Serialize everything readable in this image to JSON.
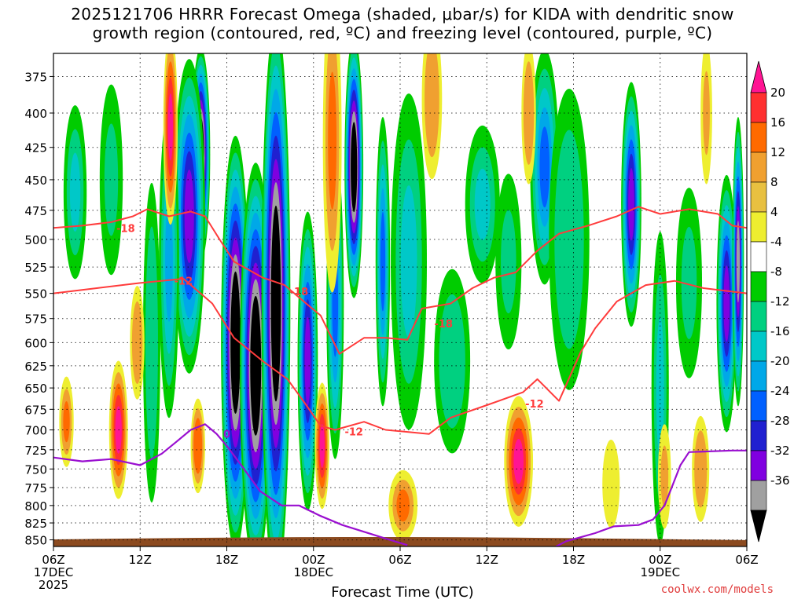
{
  "title_line1": "2025121706 HRRR Forecast Omega (shaded, μbar/s) for KIDA with dendritic snow",
  "title_line2": "growth region (contoured, red, ºC) and freezing level (contoured, purple, ºC)",
  "credit": "coolwx.com/models",
  "colors": {
    "dendritic": "#ff3b3b",
    "freezing": "#9a0fd0",
    "terrain": "#8b4a1f"
  },
  "chart_data": {
    "type": "heatmap",
    "title": "2025121706 HRRR Forecast Omega (shaded, μbar/s) for KIDA with dendritic snow growth region (contoured, red, ºC) and freezing level (contoured, purple, ºC)",
    "xlabel": "Forecast Time (UTC)",
    "ylabel": "",
    "x_range_hours": [
      0,
      48
    ],
    "y_range_mb": [
      360,
      860
    ],
    "y_scale": "log-pressure",
    "y_ticks": [
      375,
      400,
      425,
      450,
      475,
      500,
      525,
      550,
      575,
      600,
      625,
      650,
      675,
      700,
      725,
      750,
      775,
      800,
      825,
      850
    ],
    "x_ticks": [
      {
        "hour": 0,
        "l1": "06Z",
        "l2": "17DEC",
        "l3": "2025"
      },
      {
        "hour": 6,
        "l1": "12Z",
        "l2": "",
        "l3": ""
      },
      {
        "hour": 12,
        "l1": "18Z",
        "l2": "",
        "l3": ""
      },
      {
        "hour": 18,
        "l1": "00Z",
        "l2": "18DEC",
        "l3": ""
      },
      {
        "hour": 24,
        "l1": "06Z",
        "l2": "",
        "l3": ""
      },
      {
        "hour": 30,
        "l1": "12Z",
        "l2": "",
        "l3": ""
      },
      {
        "hour": 36,
        "l1": "18Z",
        "l2": "",
        "l3": ""
      },
      {
        "hour": 42,
        "l1": "00Z",
        "l2": "19DEC",
        "l3": ""
      },
      {
        "hour": 48,
        "l1": "06Z",
        "l2": "",
        "l3": ""
      }
    ],
    "grid": true,
    "colorbar": {
      "labels": [
        "20",
        "16",
        "12",
        "8",
        "4",
        "-4",
        "-8",
        "-12",
        "-16",
        "-20",
        "-24",
        "-28",
        "-32",
        "-36"
      ],
      "bins": [
        {
          "color": "#ff1493"
        },
        {
          "color": "#ff3030"
        },
        {
          "color": "#ff6a00"
        },
        {
          "color": "#f0a030"
        },
        {
          "color": "#e8c040"
        },
        {
          "color": "#eeee30"
        },
        {
          "color": "#ffffff"
        },
        {
          "color": "#00cc00"
        },
        {
          "color": "#00d080"
        },
        {
          "color": "#00c8c8"
        },
        {
          "color": "#00a8e8"
        },
        {
          "color": "#0060ff"
        },
        {
          "color": "#2020d0"
        },
        {
          "color": "#8000e0"
        },
        {
          "color": "#a0a0a0"
        },
        {
          "color": "#000000"
        }
      ]
    },
    "omega_cells": [
      {
        "h": 12.6,
        "p": 600,
        "dh": 2.0,
        "dp": 420,
        "v": -40
      },
      {
        "h": 14.0,
        "p": 625,
        "dh": 2.2,
        "dp": 430,
        "v": -40
      },
      {
        "h": 15.4,
        "p": 560,
        "dh": 2.0,
        "dp": 520,
        "v": -40
      },
      {
        "h": 10.2,
        "p": 430,
        "dh": 1.3,
        "dp": 160,
        "v": -40
      },
      {
        "h": 20.8,
        "p": 440,
        "dh": 1.3,
        "dp": 200,
        "v": -40
      },
      {
        "h": 9.4,
        "p": 480,
        "dh": 2.2,
        "dp": 260,
        "v": -28
      },
      {
        "h": 17.6,
        "p": 620,
        "dh": 1.4,
        "dp": 320,
        "v": -28
      },
      {
        "h": 19.5,
        "p": 560,
        "dh": 1.2,
        "dp": 300,
        "v": -20
      },
      {
        "h": 22.8,
        "p": 520,
        "dh": 1.0,
        "dp": 260,
        "v": -20
      },
      {
        "h": 24.6,
        "p": 520,
        "dh": 2.5,
        "dp": 300,
        "v": -12
      },
      {
        "h": 27.6,
        "p": 620,
        "dh": 2.5,
        "dp": 200,
        "v": -10
      },
      {
        "h": 29.7,
        "p": 470,
        "dh": 2.4,
        "dp": 130,
        "v": -12
      },
      {
        "h": 34.0,
        "p": 440,
        "dh": 2.0,
        "dp": 180,
        "v": -20
      },
      {
        "h": 35.7,
        "p": 500,
        "dh": 2.8,
        "dp": 260,
        "v": -10
      },
      {
        "h": 40.0,
        "p": 470,
        "dh": 1.4,
        "dp": 200,
        "v": -28
      },
      {
        "h": 42.0,
        "p": 650,
        "dh": 1.2,
        "dp": 350,
        "v": -12
      },
      {
        "h": 46.6,
        "p": 560,
        "dh": 1.4,
        "dp": 250,
        "v": -28
      },
      {
        "h": 47.4,
        "p": 520,
        "dh": 0.8,
        "dp": 260,
        "v": -32
      },
      {
        "h": 1.5,
        "p": 460,
        "dh": 1.6,
        "dp": 140,
        "v": -12
      },
      {
        "h": 4.0,
        "p": 450,
        "dh": 1.6,
        "dp": 150,
        "v": -8
      },
      {
        "h": 6.8,
        "p": 600,
        "dh": 1.2,
        "dp": 330,
        "v": -10
      },
      {
        "h": 8.0,
        "p": 520,
        "dh": 1.4,
        "dp": 280,
        "v": -16
      },
      {
        "h": 31.5,
        "p": 520,
        "dh": 1.8,
        "dp": 160,
        "v": -8
      },
      {
        "h": 44.0,
        "p": 540,
        "dh": 1.8,
        "dp": 180,
        "v": -8
      },
      {
        "h": 0.9,
        "p": 690,
        "dh": 1.0,
        "dp": 110,
        "v": 12
      },
      {
        "h": 4.5,
        "p": 700,
        "dh": 1.3,
        "dp": 170,
        "v": 18
      },
      {
        "h": 5.8,
        "p": 600,
        "dh": 1.0,
        "dp": 120,
        "v": 10
      },
      {
        "h": 10.0,
        "p": 720,
        "dh": 1.0,
        "dp": 120,
        "v": 14
      },
      {
        "h": 8.1,
        "p": 410,
        "dh": 1.0,
        "dp": 140,
        "v": 18
      },
      {
        "h": 18.6,
        "p": 720,
        "dh": 1.0,
        "dp": 160,
        "v": 18
      },
      {
        "h": 19.3,
        "p": 420,
        "dh": 1.3,
        "dp": 220,
        "v": 12
      },
      {
        "h": 24.2,
        "p": 800,
        "dh": 2.0,
        "dp": 100,
        "v": 12
      },
      {
        "h": 26.2,
        "p": 390,
        "dh": 1.4,
        "dp": 110,
        "v": 10
      },
      {
        "h": 32.2,
        "p": 740,
        "dh": 2.0,
        "dp": 170,
        "v": 20
      },
      {
        "h": 32.9,
        "p": 400,
        "dh": 1.0,
        "dp": 100,
        "v": 10
      },
      {
        "h": 38.6,
        "p": 770,
        "dh": 1.2,
        "dp": 120,
        "v": 4
      },
      {
        "h": 42.3,
        "p": 760,
        "dh": 0.9,
        "dp": 140,
        "v": 8
      },
      {
        "h": 44.8,
        "p": 750,
        "dh": 1.2,
        "dp": 140,
        "v": 10
      },
      {
        "h": 45.2,
        "p": 400,
        "dh": 0.8,
        "dp": 100,
        "v": 8
      }
    ],
    "dendritic_minus12": [
      {
        "h": 0,
        "p": 550
      },
      {
        "h": 3,
        "p": 545
      },
      {
        "h": 6,
        "p": 540
      },
      {
        "h": 9,
        "p": 536
      },
      {
        "h": 11,
        "p": 560
      },
      {
        "h": 12.5,
        "p": 595
      },
      {
        "h": 14.5,
        "p": 620
      },
      {
        "h": 16.2,
        "p": 640
      },
      {
        "h": 17.5,
        "p": 670
      },
      {
        "h": 18.5,
        "p": 695
      },
      {
        "h": 19.5,
        "p": 700
      },
      {
        "h": 21.5,
        "p": 690
      },
      {
        "h": 23,
        "p": 700
      },
      {
        "h": 26,
        "p": 705
      },
      {
        "h": 27.5,
        "p": 685
      },
      {
        "h": 30,
        "p": 670
      },
      {
        "h": 32.5,
        "p": 655
      },
      {
        "h": 33.5,
        "p": 640
      },
      {
        "h": 35,
        "p": 665
      },
      {
        "h": 36.5,
        "p": 610
      },
      {
        "h": 37.5,
        "p": 585
      },
      {
        "h": 39,
        "p": 558
      },
      {
        "h": 41,
        "p": 542
      },
      {
        "h": 43,
        "p": 538
      },
      {
        "h": 45,
        "p": 545
      },
      {
        "h": 48,
        "p": 550
      }
    ],
    "dendritic_minus18": [
      {
        "h": 0,
        "p": 490
      },
      {
        "h": 2,
        "p": 488
      },
      {
        "h": 4,
        "p": 485
      },
      {
        "h": 5.5,
        "p": 480
      },
      {
        "h": 6.5,
        "p": 474
      },
      {
        "h": 8,
        "p": 480
      },
      {
        "h": 9.5,
        "p": 476
      },
      {
        "h": 10.5,
        "p": 480
      },
      {
        "h": 11.5,
        "p": 500
      },
      {
        "h": 12.5,
        "p": 520
      },
      {
        "h": 14.5,
        "p": 535
      },
      {
        "h": 16,
        "p": 542
      },
      {
        "h": 17.5,
        "p": 560
      },
      {
        "h": 18.5,
        "p": 572
      },
      {
        "h": 19.8,
        "p": 612
      },
      {
        "h": 21.5,
        "p": 595
      },
      {
        "h": 23,
        "p": 595
      },
      {
        "h": 24.5,
        "p": 597
      },
      {
        "h": 25.5,
        "p": 565
      },
      {
        "h": 27.5,
        "p": 560
      },
      {
        "h": 29,
        "p": 545
      },
      {
        "h": 30.5,
        "p": 535
      },
      {
        "h": 32,
        "p": 530
      },
      {
        "h": 33.5,
        "p": 510
      },
      {
        "h": 35,
        "p": 495
      },
      {
        "h": 37,
        "p": 488
      },
      {
        "h": 39,
        "p": 480
      },
      {
        "h": 40.5,
        "p": 472
      },
      {
        "h": 42,
        "p": 478
      },
      {
        "h": 44,
        "p": 474
      },
      {
        "h": 46,
        "p": 478
      },
      {
        "h": 47,
        "p": 488
      },
      {
        "h": 48,
        "p": 490
      }
    ],
    "freezing_level_0": [
      {
        "h": 0,
        "p": 735
      },
      {
        "h": 2,
        "p": 740
      },
      {
        "h": 4,
        "p": 737
      },
      {
        "h": 6,
        "p": 745
      },
      {
        "h": 7.5,
        "p": 730
      },
      {
        "h": 8.5,
        "p": 715
      },
      {
        "h": 9.5,
        "p": 700
      },
      {
        "h": 10.5,
        "p": 693
      },
      {
        "h": 11.3,
        "p": 705
      },
      {
        "h": 12.0,
        "p": 720
      },
      {
        "h": 13,
        "p": 745
      },
      {
        "h": 14.3,
        "p": 780
      },
      {
        "h": 15.8,
        "p": 800
      },
      {
        "h": 17,
        "p": 800
      },
      {
        "h": 18.5,
        "p": 815
      },
      {
        "h": 20,
        "p": 828
      },
      {
        "h": 21.5,
        "p": 838
      },
      {
        "h": 23,
        "p": 848
      },
      {
        "h": 24.5,
        "p": 858
      }
    ],
    "freezing_level_0b": [
      {
        "h": 34.8,
        "p": 860
      },
      {
        "h": 35.5,
        "p": 852
      },
      {
        "h": 36.5,
        "p": 846
      },
      {
        "h": 37.5,
        "p": 840
      },
      {
        "h": 38.8,
        "p": 830
      },
      {
        "h": 40.5,
        "p": 828
      },
      {
        "h": 41.5,
        "p": 820
      },
      {
        "h": 42.3,
        "p": 800
      },
      {
        "h": 42.8,
        "p": 775
      },
      {
        "h": 43.4,
        "p": 745
      },
      {
        "h": 44.0,
        "p": 728
      },
      {
        "h": 45.5,
        "p": 727
      },
      {
        "h": 47,
        "p": 726
      },
      {
        "h": 48,
        "p": 726
      }
    ],
    "contour_labels": [
      {
        "text": "-18",
        "h": 5.0,
        "p": 490,
        "c": "dendritic"
      },
      {
        "text": "-12",
        "h": 9.0,
        "p": 538,
        "c": "dendritic"
      },
      {
        "text": "-18",
        "h": 17.0,
        "p": 548,
        "c": "dendritic"
      },
      {
        "text": "-18",
        "h": 27.0,
        "p": 580,
        "c": "dendritic"
      },
      {
        "text": "-12",
        "h": 33.3,
        "p": 668,
        "c": "dendritic"
      },
      {
        "text": "-12",
        "h": 20.8,
        "p": 702,
        "c": "dendritic"
      },
      {
        "text": "0",
        "h": 12.0,
        "p": 705,
        "c": "freezing"
      }
    ]
  }
}
